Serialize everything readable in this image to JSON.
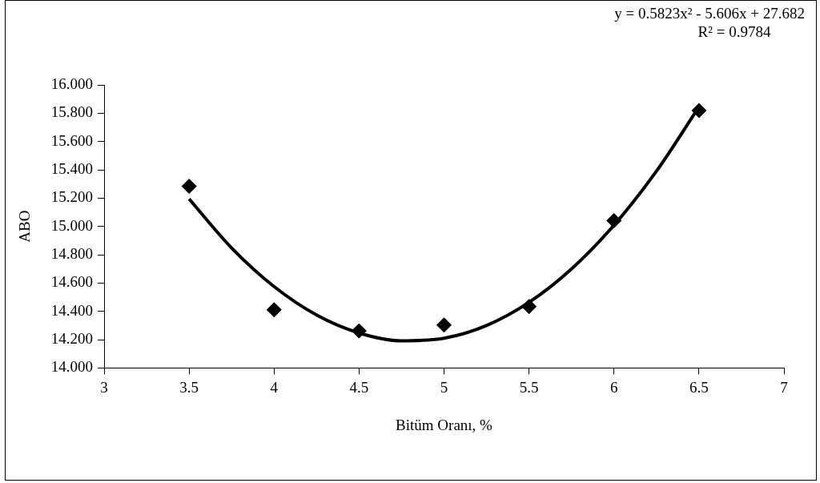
{
  "chart_data": {
    "type": "scatter",
    "xlabel": "Bitüm Oranı, %",
    "ylabel": "ABO",
    "annotations": [
      "y = 0.5823x² - 5.606x + 27.682",
      "R² = 0.9784"
    ],
    "xlim": [
      3,
      7
    ],
    "xticks": [
      3,
      3.5,
      4,
      4.5,
      5,
      5.5,
      6,
      6.5,
      7
    ],
    "ylim": [
      14,
      16
    ],
    "yticks": [
      {
        "value": 14,
        "label": "14.000"
      },
      {
        "value": 14.2,
        "label": "14.200"
      },
      {
        "value": 14.4,
        "label": "14.400"
      },
      {
        "value": 14.6,
        "label": "14.600"
      },
      {
        "value": 14.8,
        "label": "14.800"
      },
      {
        "value": 15,
        "label": "15.000"
      },
      {
        "value": 15.2,
        "label": "15.200"
      },
      {
        "value": 15.4,
        "label": "15.400"
      },
      {
        "value": 15.6,
        "label": "15.600"
      },
      {
        "value": 15.8,
        "label": "15.800"
      },
      {
        "value": 16,
        "label": "16.000"
      }
    ],
    "grid": false,
    "legend": false,
    "marker": "diamond",
    "x": [
      3.5,
      4,
      4.5,
      5,
      5.5,
      6,
      6.5
    ],
    "series": [
      {
        "color": "#000000",
        "values": [
          15.284,
          14.411,
          14.262,
          14.303,
          14.434,
          15.041,
          15.819
        ]
      },
      {
        "type": "line",
        "color": "#000000",
        "marker": "none",
        "line_style": "solid",
        "x": [
          3.5,
          3.75,
          4,
          4.25,
          4.5,
          4.75,
          5,
          5.25,
          5.5,
          5.75,
          6,
          6.25,
          6.5
        ],
        "values": [
          15.194,
          14.848,
          14.575,
          14.374,
          14.247,
          14.192,
          14.21,
          14.3,
          14.464,
          14.7,
          15.009,
          15.391,
          15.845
        ]
      }
    ]
  }
}
